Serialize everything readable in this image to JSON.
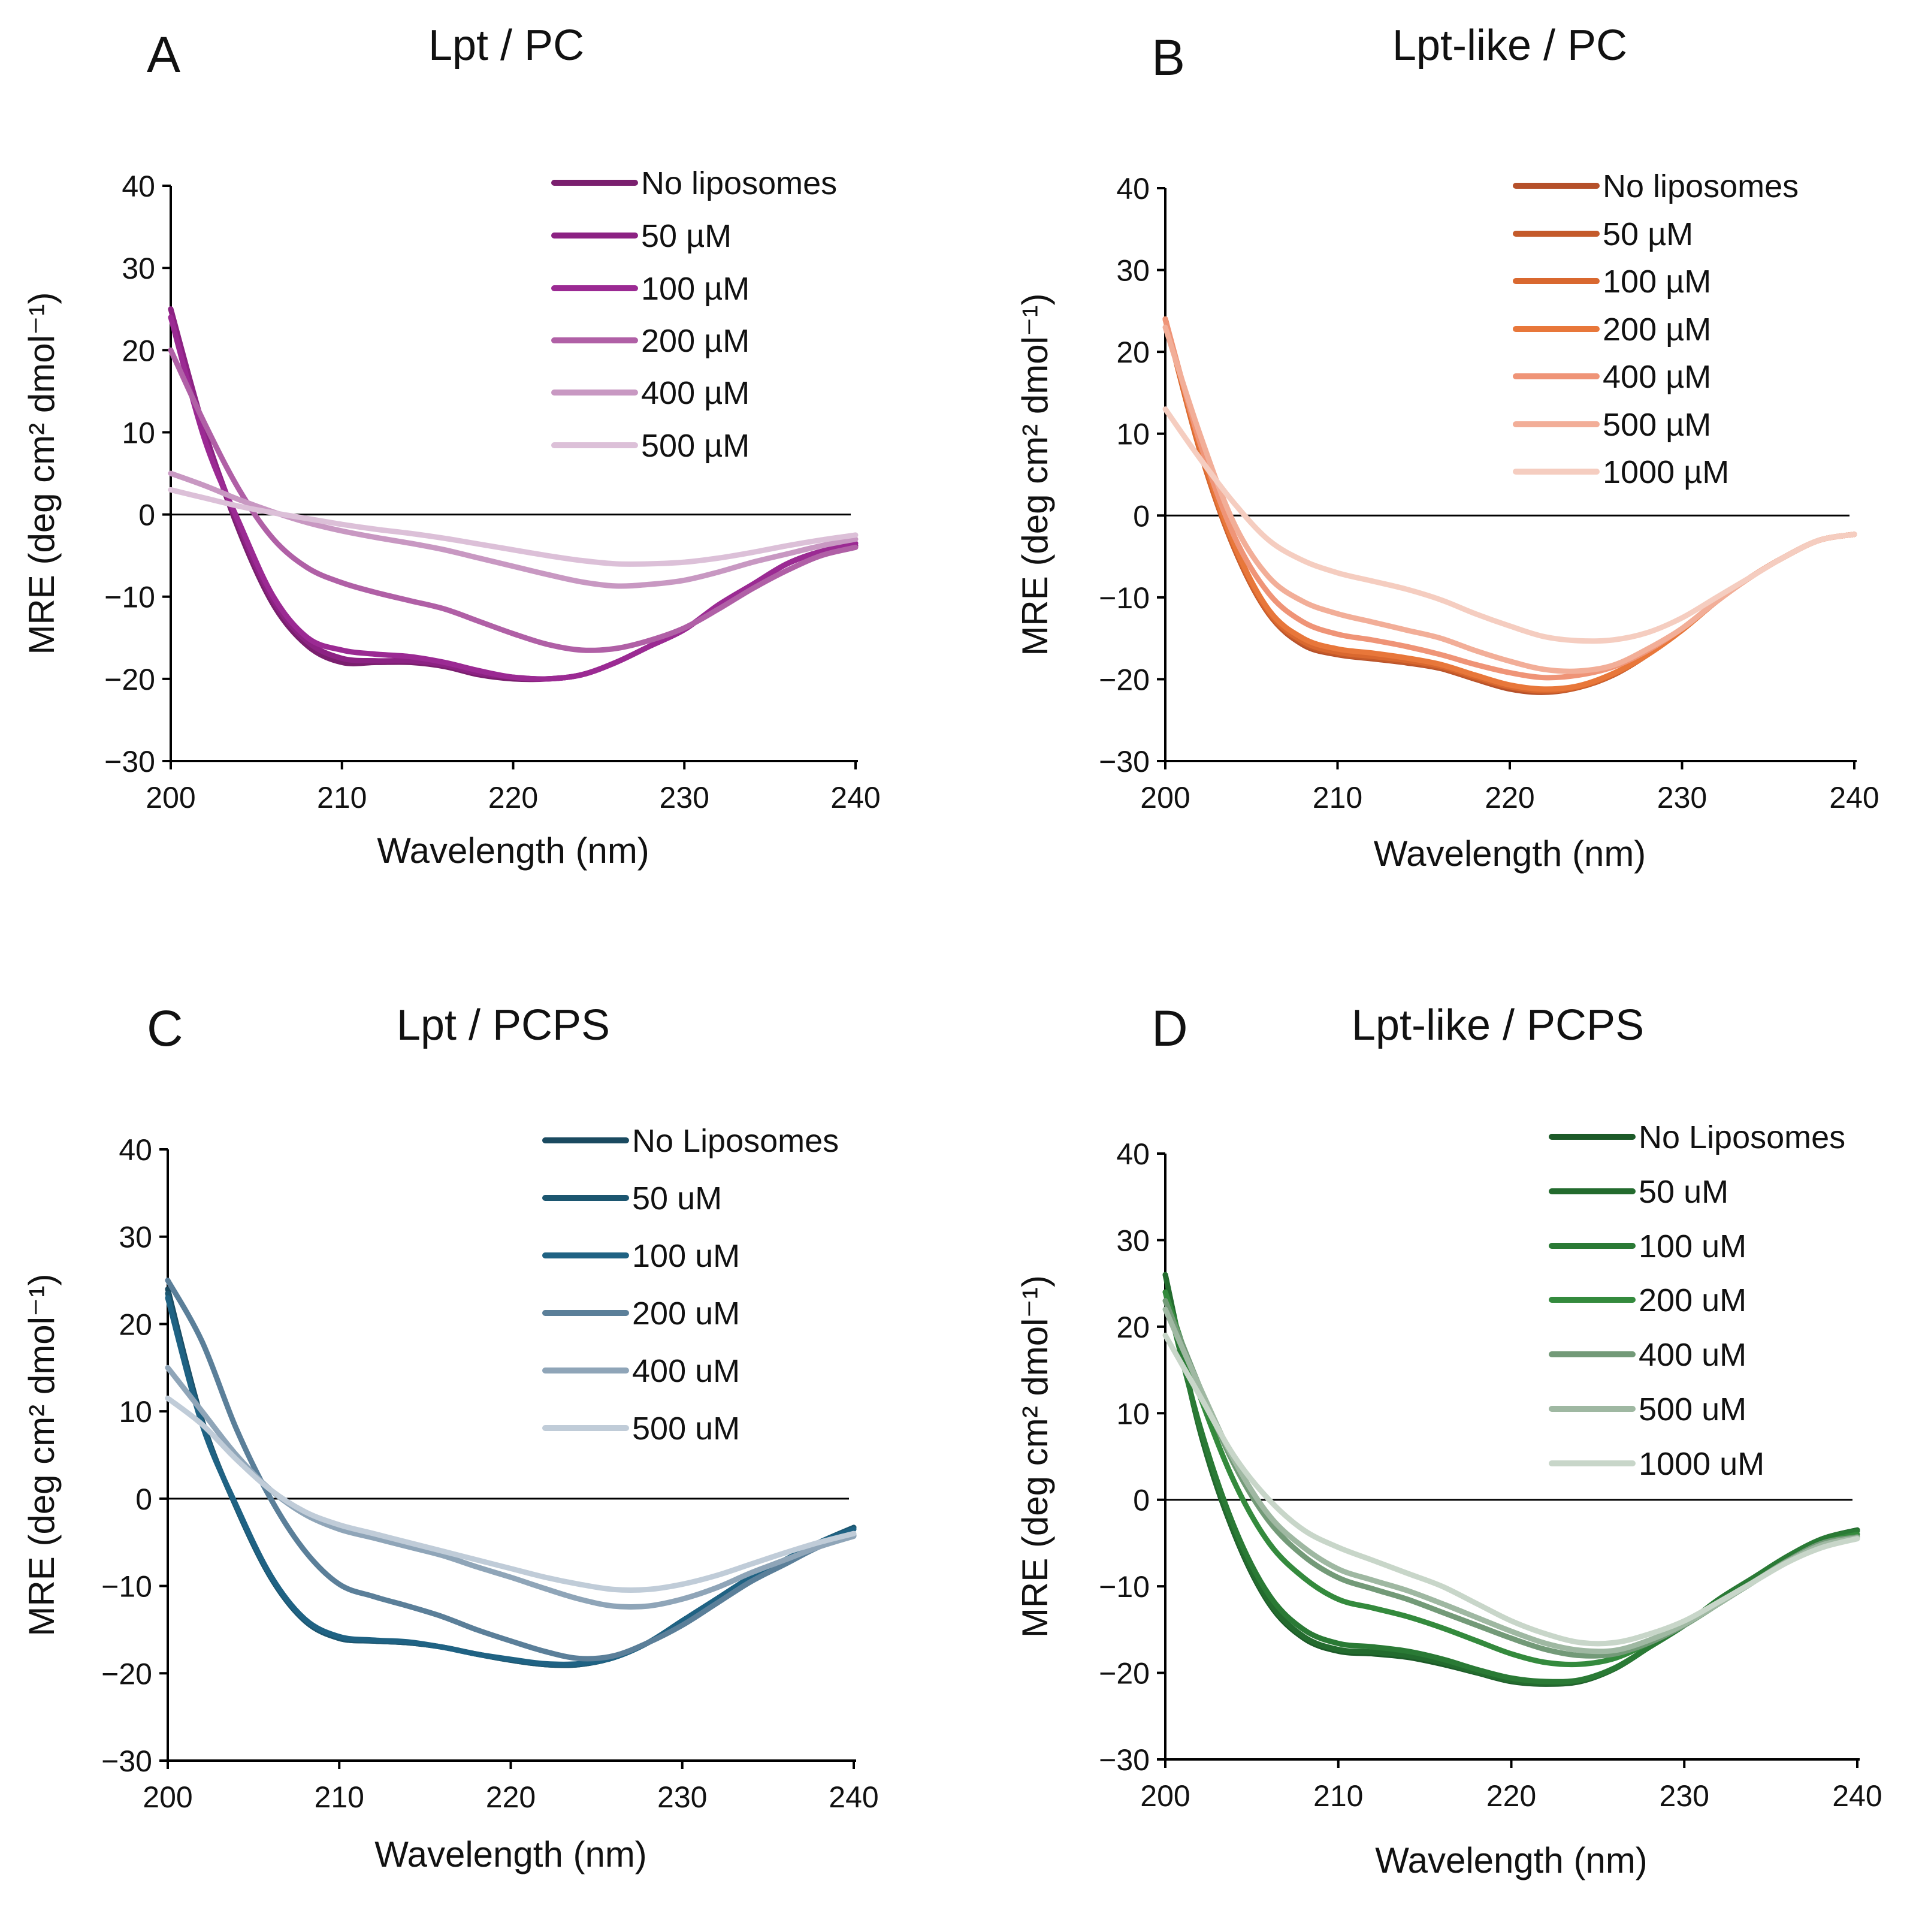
{
  "chart_data": [
    {
      "type": "line",
      "panel_letter": "A",
      "title": "Lpt / PC",
      "xlabel": "Wavelength (nm)",
      "ylabel": "MRE (deg cm² dmol⁻¹)",
      "xlim": [
        200,
        240
      ],
      "ylim": [
        -30,
        40
      ],
      "xticks": [
        200,
        210,
        220,
        230,
        240
      ],
      "yticks": [
        40,
        30,
        20,
        10,
        0,
        -10,
        -20,
        -30
      ],
      "legend": "top-right",
      "grid": false,
      "x": [
        200,
        202,
        204,
        206,
        208,
        210,
        212,
        214,
        216,
        218,
        220,
        222,
        224,
        226,
        228,
        230,
        232,
        234,
        236,
        238,
        240
      ],
      "series": [
        {
          "name": "No liposomes",
          "color": "#7a1f6e",
          "values": [
            25,
            10,
            -2,
            -11,
            -16,
            -18,
            -18,
            -18,
            -18.5,
            -19.5,
            -20,
            -20,
            -19.5,
            -18,
            -16,
            -14,
            -11,
            -8.5,
            -6,
            -4.5,
            -3.8
          ]
        },
        {
          "name": "50 µM",
          "color": "#8c2283",
          "values": [
            25,
            10,
            -1.5,
            -10.5,
            -15.5,
            -17.5,
            -17.8,
            -17.8,
            -18.3,
            -19.3,
            -19.8,
            -20,
            -19.5,
            -18,
            -16,
            -14,
            -11,
            -8.5,
            -6,
            -4.5,
            -3.8
          ]
        },
        {
          "name": "100 µM",
          "color": "#9b2a93",
          "values": [
            24,
            9,
            -1,
            -10,
            -15,
            -16.5,
            -17,
            -17.3,
            -18,
            -19,
            -19.8,
            -20,
            -19.5,
            -18,
            -16,
            -14,
            -11,
            -8.5,
            -6,
            -4.5,
            -3.5
          ]
        },
        {
          "name": "200 µM",
          "color": "#b060a6",
          "values": [
            20,
            11,
            3,
            -3,
            -6.5,
            -8.3,
            -9.5,
            -10.5,
            -11.5,
            -13,
            -14.5,
            -15.8,
            -16.5,
            -16.3,
            -15.3,
            -13.8,
            -11.5,
            -9,
            -6.8,
            -5,
            -4
          ]
        },
        {
          "name": "400 µM",
          "color": "#c898c2",
          "values": [
            5,
            3.5,
            1.8,
            0.3,
            -1,
            -2,
            -2.8,
            -3.5,
            -4.3,
            -5.3,
            -6.3,
            -7.3,
            -8.2,
            -8.7,
            -8.5,
            -8,
            -7,
            -5.8,
            -4.8,
            -3.8,
            -3
          ]
        },
        {
          "name": "500 µM",
          "color": "#dcc0d8",
          "values": [
            3,
            2,
            1,
            0.2,
            -0.5,
            -1.2,
            -1.8,
            -2.3,
            -2.9,
            -3.6,
            -4.3,
            -5,
            -5.6,
            -6,
            -6,
            -5.8,
            -5.3,
            -4.6,
            -3.8,
            -3.1,
            -2.5
          ]
        }
      ]
    },
    {
      "type": "line",
      "panel_letter": "B",
      "title": "Lpt-like / PC",
      "xlabel": "Wavelength (nm)",
      "ylabel": "MRE (deg cm² dmol⁻¹)",
      "xlim": [
        200,
        240
      ],
      "ylim": [
        -30,
        40
      ],
      "xticks": [
        200,
        210,
        220,
        230,
        240
      ],
      "yticks": [
        40,
        30,
        20,
        10,
        0,
        -10,
        -20,
        -30
      ],
      "legend": "top-right",
      "grid": false,
      "x": [
        200,
        202,
        204,
        206,
        208,
        210,
        212,
        214,
        216,
        218,
        220,
        222,
        224,
        226,
        228,
        230,
        232,
        234,
        236,
        238,
        240
      ],
      "series": [
        {
          "name": "No liposomes",
          "color": "#b5502a",
          "values": [
            24,
            8,
            -4,
            -12,
            -15.8,
            -17,
            -17.5,
            -18,
            -18.7,
            -20,
            -21.2,
            -21.6,
            -21,
            -19.5,
            -17,
            -14,
            -10.5,
            -7.5,
            -5,
            -3,
            -2.3
          ]
        },
        {
          "name": "50 µM",
          "color": "#c45a2a",
          "values": [
            24,
            8,
            -4,
            -12,
            -15.6,
            -16.9,
            -17.4,
            -17.9,
            -18.6,
            -19.9,
            -21,
            -21.5,
            -21,
            -19.5,
            -17,
            -14,
            -10.5,
            -7.5,
            -5,
            -3,
            -2.3
          ]
        },
        {
          "name": "100 µM",
          "color": "#d9682f",
          "values": [
            24,
            8,
            -3.8,
            -11.8,
            -15.4,
            -16.7,
            -17.2,
            -17.7,
            -18.4,
            -19.7,
            -20.9,
            -21.4,
            -20.9,
            -19.4,
            -17,
            -14,
            -10.5,
            -7.5,
            -5,
            -3,
            -2.3
          ]
        },
        {
          "name": "200 µM",
          "color": "#e8773a",
          "values": [
            24,
            8.5,
            -3.5,
            -11.5,
            -15,
            -16.3,
            -16.8,
            -17.4,
            -18.2,
            -19.5,
            -20.7,
            -21.2,
            -20.8,
            -19.3,
            -17,
            -14,
            -10.5,
            -7.5,
            -5,
            -3,
            -2.3
          ]
        },
        {
          "name": "400 µM",
          "color": "#ef9477",
          "values": [
            24,
            9,
            -2.5,
            -9.5,
            -13,
            -14.5,
            -15.2,
            -16,
            -17,
            -18.2,
            -19.2,
            -19.8,
            -19.5,
            -18.5,
            -16.5,
            -13.8,
            -10.5,
            -7.5,
            -5,
            -3,
            -2.3
          ]
        },
        {
          "name": "500 µM",
          "color": "#f2ae98",
          "values": [
            23,
            10,
            -1,
            -7.5,
            -10.5,
            -12,
            -13,
            -14,
            -15,
            -16.5,
            -17.8,
            -18.8,
            -19,
            -18.3,
            -16.3,
            -13.8,
            -10.5,
            -7.5,
            -5,
            -3,
            -2.3
          ]
        },
        {
          "name": "1000 µM",
          "color": "#f5cdc0",
          "values": [
            13,
            7,
            1.5,
            -3,
            -5.5,
            -7,
            -8,
            -9,
            -10.3,
            -12,
            -13.5,
            -14.8,
            -15.3,
            -15.2,
            -14.3,
            -12.5,
            -10,
            -7.5,
            -5,
            -3,
            -2.3
          ]
        }
      ]
    },
    {
      "type": "line",
      "panel_letter": "C",
      "title": "Lpt / PCPS",
      "xlabel": "Wavelength (nm)",
      "ylabel": "MRE (deg cm² dmol⁻¹)",
      "xlim": [
        200,
        240
      ],
      "ylim": [
        -30,
        40
      ],
      "xticks": [
        200,
        210,
        220,
        230,
        240
      ],
      "yticks": [
        40,
        30,
        20,
        10,
        0,
        -10,
        -20,
        -30
      ],
      "legend": "top-right",
      "grid": false,
      "x": [
        200,
        202,
        204,
        206,
        208,
        210,
        212,
        214,
        216,
        218,
        220,
        222,
        224,
        226,
        228,
        230,
        232,
        234,
        236,
        238,
        240
      ],
      "series": [
        {
          "name": "No Liposomes",
          "color": "#1a4a60",
          "values": [
            24,
            9,
            -1,
            -9,
            -14,
            -16,
            -16.3,
            -16.5,
            -17,
            -17.8,
            -18.5,
            -19,
            -19,
            -18.2,
            -16.5,
            -14,
            -11.5,
            -9,
            -7,
            -5,
            -3.3
          ]
        },
        {
          "name": "50 uM",
          "color": "#1c5670",
          "values": [
            23.5,
            8.8,
            -1,
            -9,
            -14,
            -16,
            -16.3,
            -16.5,
            -17,
            -17.8,
            -18.5,
            -19,
            -19,
            -18.2,
            -16.5,
            -14,
            -11.5,
            -9,
            -7,
            -5,
            -3.3
          ]
        },
        {
          "name": "100 uM",
          "color": "#1f6283",
          "values": [
            23,
            8.5,
            -0.8,
            -8.8,
            -13.8,
            -15.8,
            -16.2,
            -16.4,
            -17,
            -17.8,
            -18.4,
            -18.9,
            -18.9,
            -18.2,
            -16.5,
            -14,
            -11.5,
            -9,
            -7,
            -5,
            -3.5
          ]
        },
        {
          "name": "200 uM",
          "color": "#5b7f99",
          "values": [
            25,
            18,
            8,
            0,
            -6,
            -9.8,
            -11.2,
            -12.3,
            -13.5,
            -15,
            -16.3,
            -17.5,
            -18.3,
            -18,
            -16.5,
            -14.5,
            -12,
            -9.5,
            -7.5,
            -5.5,
            -4.2
          ]
        },
        {
          "name": "400 uM",
          "color": "#8fa5b8",
          "values": [
            15,
            10,
            5,
            1,
            -1.8,
            -3.5,
            -4.5,
            -5.5,
            -6.5,
            -7.8,
            -9,
            -10.3,
            -11.5,
            -12.3,
            -12.3,
            -11.5,
            -10.2,
            -8.5,
            -7,
            -5.5,
            -4.3
          ]
        },
        {
          "name": "500 uM",
          "color": "#c0ccd8",
          "values": [
            11.5,
            8.5,
            4.5,
            1,
            -1.5,
            -3,
            -4,
            -5,
            -6,
            -7,
            -8,
            -9,
            -9.8,
            -10.4,
            -10.4,
            -9.8,
            -8.8,
            -7.5,
            -6.2,
            -5,
            -4
          ]
        }
      ]
    },
    {
      "type": "line",
      "panel_letter": "D",
      "title": "Lpt-like / PCPS",
      "xlabel": "Wavelength (nm)",
      "ylabel": "MRE (deg cm² dmol⁻¹)",
      "xlim": [
        200,
        240
      ],
      "ylim": [
        -30,
        40
      ],
      "xticks": [
        200,
        210,
        220,
        230,
        240
      ],
      "yticks": [
        40,
        30,
        20,
        10,
        0,
        -10,
        -20,
        -30
      ],
      "legend": "top-right",
      "grid": false,
      "x": [
        200,
        202,
        204,
        206,
        208,
        210,
        212,
        214,
        216,
        218,
        220,
        222,
        224,
        226,
        228,
        230,
        232,
        234,
        236,
        238,
        240
      ],
      "series": [
        {
          "name": "No Liposomes",
          "color": "#1c5a28",
          "values": [
            26,
            8,
            -4,
            -12,
            -16,
            -17.5,
            -17.8,
            -18.2,
            -19,
            -20,
            -21,
            -21.3,
            -21,
            -19.5,
            -17,
            -14.5,
            -11.5,
            -9,
            -6.5,
            -4.5,
            -3.5
          ]
        },
        {
          "name": "50 uM",
          "color": "#236b2e",
          "values": [
            26,
            8,
            -3.8,
            -11.8,
            -15.8,
            -17.3,
            -17.6,
            -18,
            -18.8,
            -19.9,
            -20.9,
            -21.2,
            -20.9,
            -19.5,
            -17,
            -14.5,
            -11.5,
            -9,
            -6.5,
            -4.5,
            -3.5
          ]
        },
        {
          "name": "100 uM",
          "color": "#2a7a35",
          "values": [
            24,
            8.5,
            -3.2,
            -11,
            -15,
            -16.6,
            -17,
            -17.5,
            -18.4,
            -19.6,
            -20.6,
            -21,
            -20.8,
            -19.4,
            -17,
            -14.5,
            -11.5,
            -9,
            -6.5,
            -4.5,
            -3.6
          ]
        },
        {
          "name": "200 uM",
          "color": "#348a3d",
          "values": [
            24,
            12,
            2,
            -5,
            -9,
            -11.5,
            -12.5,
            -13.5,
            -14.8,
            -16.3,
            -17.8,
            -18.8,
            -19,
            -18.3,
            -16.5,
            -14.5,
            -12,
            -9.5,
            -7,
            -5,
            -4
          ]
        },
        {
          "name": "400 uM",
          "color": "#739a78",
          "values": [
            23,
            13,
            4,
            -2.5,
            -6.5,
            -9,
            -10.3,
            -11.5,
            -13,
            -14.5,
            -16,
            -17.3,
            -18,
            -17.8,
            -16.5,
            -14.5,
            -12,
            -9.5,
            -7,
            -5,
            -4.3
          ]
        },
        {
          "name": "500 uM",
          "color": "#9fb8a2",
          "values": [
            22,
            13,
            4.5,
            -1.8,
            -5.5,
            -8,
            -9.3,
            -10.5,
            -12,
            -13.6,
            -15.2,
            -16.6,
            -17.4,
            -17.4,
            -16.2,
            -14.4,
            -12,
            -9.5,
            -7.1,
            -5.2,
            -4.4
          ]
        },
        {
          "name": "1000 uM",
          "color": "#c8d6c9",
          "values": [
            19,
            12,
            5,
            0,
            -3.5,
            -5.5,
            -7,
            -8.5,
            -10,
            -12,
            -14,
            -15.5,
            -16.5,
            -16.5,
            -15.5,
            -14,
            -11.8,
            -9.5,
            -7.2,
            -5.5,
            -4.5
          ]
        }
      ]
    }
  ]
}
